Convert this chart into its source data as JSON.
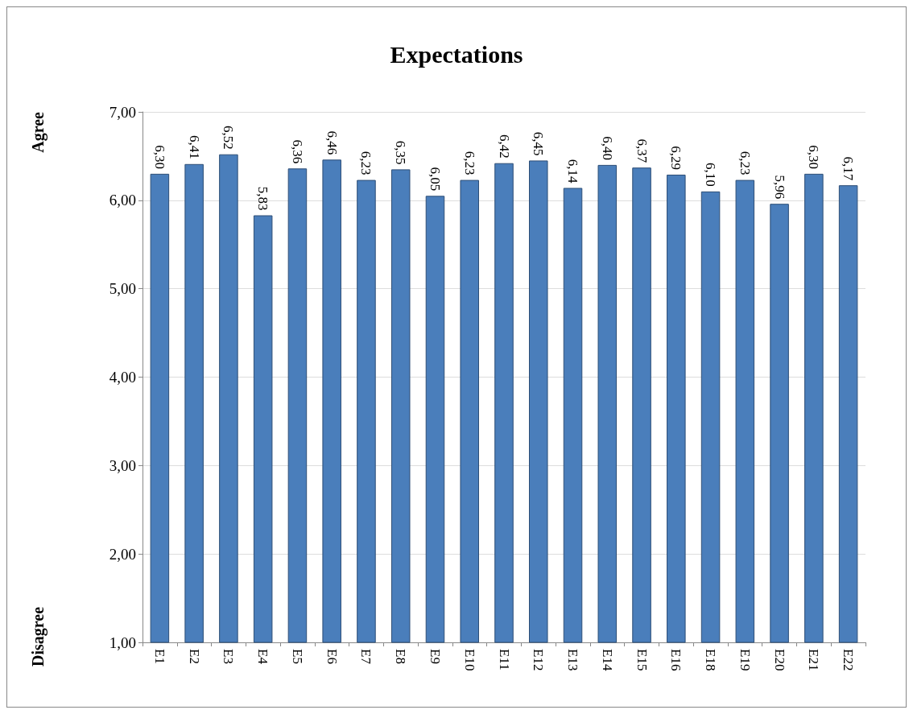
{
  "chart_data": {
    "type": "bar",
    "title": "Expectations",
    "categories": [
      "E1",
      "E2",
      "E3",
      "E4",
      "E5",
      "E6",
      "E7",
      "E8",
      "E9",
      "E10",
      "E11",
      "E12",
      "E13",
      "E14",
      "E15",
      "E16",
      "E18",
      "E19",
      "E20",
      "E21",
      "E22"
    ],
    "values": [
      6.3,
      6.41,
      6.52,
      5.83,
      6.36,
      6.46,
      6.23,
      6.35,
      6.05,
      6.23,
      6.42,
      6.45,
      6.14,
      6.4,
      6.37,
      6.29,
      6.1,
      6.23,
      5.96,
      6.3,
      6.17
    ],
    "value_labels": [
      "6,30",
      "6,41",
      "6,52",
      "5,83",
      "6,36",
      "6,46",
      "6,23",
      "6,35",
      "6,05",
      "6,23",
      "6,42",
      "6,45",
      "6,14",
      "6,40",
      "6,37",
      "6,29",
      "6,10",
      "6,23",
      "5,96",
      "6,30",
      "6,17"
    ],
    "color": "#4a7ebb",
    "ylim": [
      1,
      7
    ],
    "yticks": [
      {
        "value": 1,
        "label": "1,00"
      },
      {
        "value": 2,
        "label": "2,00"
      },
      {
        "value": 3,
        "label": "3,00"
      },
      {
        "value": 4,
        "label": "4,00"
      },
      {
        "value": 5,
        "label": "5,00"
      },
      {
        "value": 6,
        "label": "6,00"
      },
      {
        "value": 7,
        "label": "7,00"
      }
    ],
    "annotations": [
      "Agree",
      "Disagree"
    ],
    "grid": "y"
  }
}
